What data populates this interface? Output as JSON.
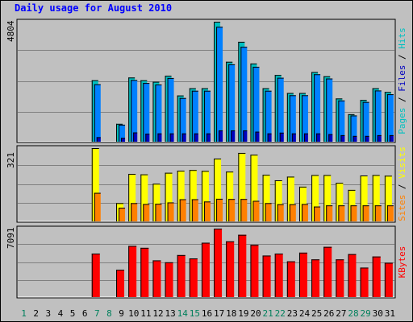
{
  "title": "Daily usage for August 2010",
  "panel_labels": {
    "top": [
      "Pages",
      " / ",
      "Files",
      " / ",
      "Hits"
    ],
    "middle": [
      "Sites",
      " / ",
      "Visits"
    ],
    "bottom": "KBytes"
  },
  "colors": {
    "background": "#c0c0c0",
    "title": "#0000ff",
    "hits": "#00c0c0",
    "files": "#0080ff",
    "pages": "#0000c0",
    "visits": "#ffff00",
    "sites": "#ff8000",
    "kbytes": "#ff0000",
    "weekend_label": "#00805c",
    "weekday_label": "#000000"
  },
  "chart_data": [
    {
      "type": "bar",
      "name": "hits-files-pages",
      "ymax_label": "4804",
      "ylim": [
        0,
        4804
      ],
      "categories": [
        "1",
        "2",
        "3",
        "4",
        "5",
        "6",
        "7",
        "8",
        "9",
        "10",
        "11",
        "12",
        "13",
        "14",
        "15",
        "16",
        "17",
        "18",
        "19",
        "20",
        "21",
        "22",
        "23",
        "24",
        "25",
        "26",
        "27",
        "28",
        "29",
        "30",
        "31"
      ],
      "weekend_days": [
        1,
        7,
        8,
        14,
        15,
        21,
        22,
        28,
        29
      ],
      "series": [
        {
          "name": "Hits",
          "values": [
            0,
            0,
            0,
            0,
            0,
            0,
            2460,
            0,
            715,
            2570,
            2460,
            2400,
            2640,
            1850,
            2140,
            2140,
            4804,
            3200,
            4000,
            3130,
            2140,
            2670,
            1950,
            1950,
            2790,
            2620,
            1730,
            1100,
            1670,
            2140,
            1990
          ]
        },
        {
          "name": "Files",
          "values": [
            0,
            0,
            0,
            0,
            0,
            0,
            2300,
            0,
            680,
            2470,
            2350,
            2290,
            2550,
            1750,
            2040,
            2040,
            4600,
            3100,
            3800,
            3000,
            2040,
            2560,
            1860,
            1860,
            2700,
            2530,
            1650,
            1050,
            1590,
            2050,
            1900
          ]
        },
        {
          "name": "Pages",
          "values": [
            0,
            0,
            0,
            0,
            0,
            0,
            180,
            0,
            150,
            370,
            320,
            330,
            330,
            330,
            330,
            330,
            450,
            450,
            450,
            400,
            330,
            360,
            330,
            330,
            330,
            300,
            260,
            230,
            230,
            260,
            260
          ]
        }
      ]
    },
    {
      "type": "bar",
      "name": "visits-sites",
      "ymax_label": "321",
      "ylim": [
        0,
        321
      ],
      "categories": [
        "1",
        "2",
        "3",
        "4",
        "5",
        "6",
        "7",
        "8",
        "9",
        "10",
        "11",
        "12",
        "13",
        "14",
        "15",
        "16",
        "17",
        "18",
        "19",
        "20",
        "21",
        "22",
        "23",
        "24",
        "25",
        "26",
        "27",
        "28",
        "29",
        "30",
        "31"
      ],
      "series": [
        {
          "name": "Visits",
          "values": [
            0,
            0,
            0,
            0,
            0,
            0,
            321,
            0,
            80,
            208,
            206,
            165,
            213,
            222,
            225,
            221,
            275,
            218,
            300,
            292,
            204,
            180,
            196,
            152,
            203,
            203,
            169,
            138,
            201,
            203,
            200
          ]
        },
        {
          "name": "Sites",
          "values": [
            0,
            0,
            0,
            0,
            0,
            0,
            125,
            0,
            60,
            80,
            76,
            77,
            83,
            97,
            97,
            87,
            99,
            98,
            98,
            90,
            80,
            75,
            75,
            76,
            65,
            70,
            70,
            70,
            70,
            70,
            70
          ]
        }
      ]
    },
    {
      "type": "bar",
      "name": "kbytes",
      "ymax_label": "7091",
      "ylim": [
        0,
        7091
      ],
      "categories": [
        "1",
        "2",
        "3",
        "4",
        "5",
        "6",
        "7",
        "8",
        "9",
        "10",
        "11",
        "12",
        "13",
        "14",
        "15",
        "16",
        "17",
        "18",
        "19",
        "20",
        "21",
        "22",
        "23",
        "24",
        "25",
        "26",
        "27",
        "28",
        "29",
        "30",
        "31"
      ],
      "series": [
        {
          "name": "KBytes",
          "values": [
            0,
            0,
            0,
            0,
            0,
            0,
            4500,
            0,
            2830,
            5300,
            5100,
            3800,
            3600,
            4350,
            4000,
            5630,
            7091,
            5770,
            6450,
            5400,
            4300,
            4500,
            3700,
            4600,
            3900,
            5200,
            3900,
            4450,
            3050,
            4200,
            3550
          ]
        }
      ]
    }
  ]
}
